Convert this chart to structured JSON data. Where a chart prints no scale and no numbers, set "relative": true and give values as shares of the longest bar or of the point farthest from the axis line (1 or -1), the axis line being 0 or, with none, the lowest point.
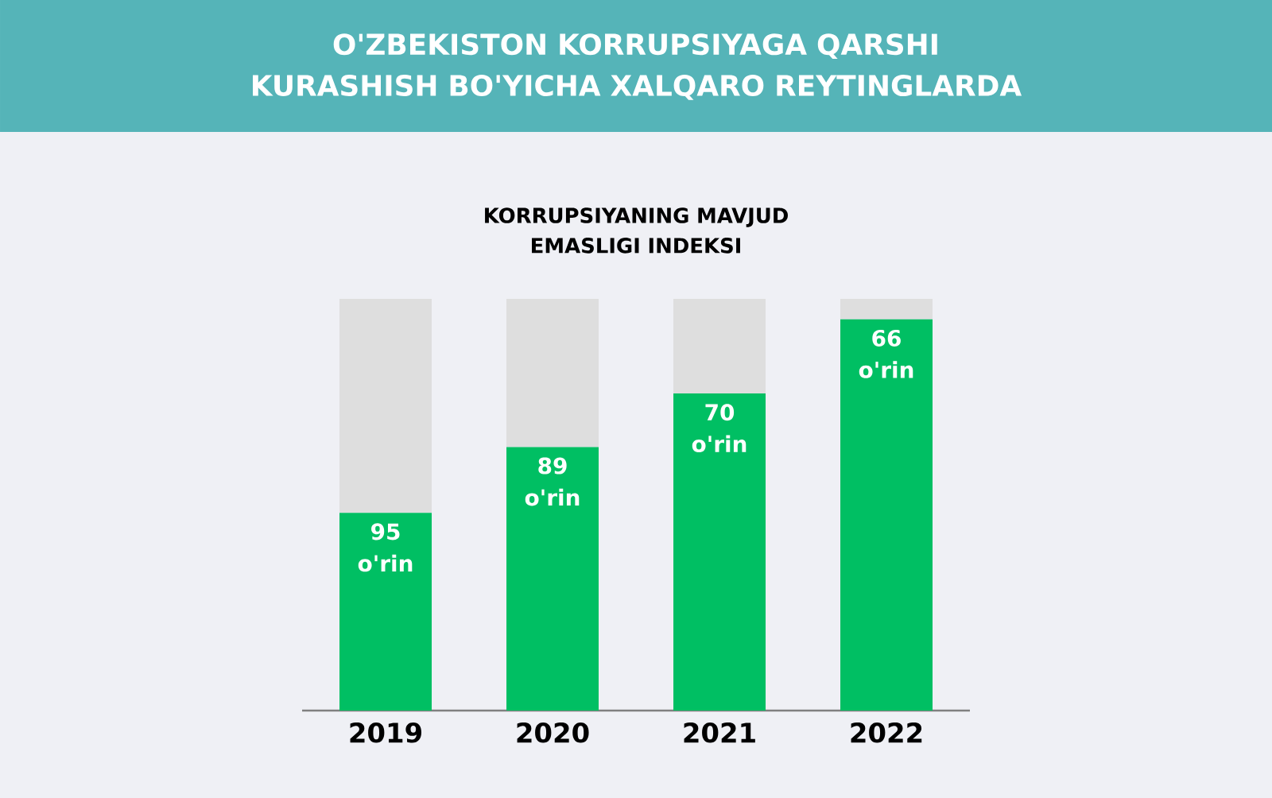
{
  "chart_data": {
    "type": "bar",
    "title": "O'ZBEKISTON KORRUPSIYAGA QARSHI KURASHISH BO'YICHA XALQARO REYTINGLARDA",
    "subtitle": "KORRUPSIYANING MAVJUD EMASLIGI INDEKSI",
    "categories": [
      "2019",
      "2020",
      "2021",
      "2022"
    ],
    "relative": true,
    "stacked": true,
    "series": [
      {
        "color": "#00bf63",
        "values": [
          0.48,
          0.64,
          0.77,
          0.95
        ]
      },
      {
        "color": "#dedede",
        "values": [
          0.52,
          0.36,
          0.23,
          0.05
        ]
      }
    ],
    "annotations": [
      {
        "text": "95 o'rin",
        "x": "2019",
        "y": 0.48
      },
      {
        "text": "89 o'rin",
        "x": "2020",
        "y": 0.64
      },
      {
        "text": "70 o'rin",
        "x": "2021",
        "y": 0.77
      },
      {
        "text": "66 o'rin",
        "x": "2022",
        "y": 0.95
      }
    ]
  }
}
